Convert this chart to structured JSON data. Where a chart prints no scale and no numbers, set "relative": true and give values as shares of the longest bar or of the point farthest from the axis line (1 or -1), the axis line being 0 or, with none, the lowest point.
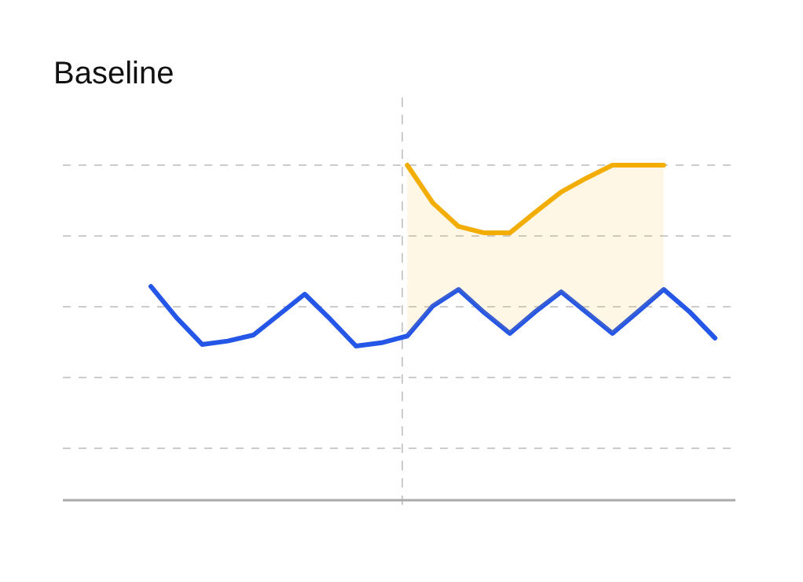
{
  "chart_data": {
    "type": "line",
    "title": "Baseline",
    "relative": true,
    "grid": "y",
    "line_style": "solid",
    "marker": "none",
    "categories": [
      null,
      null,
      null,
      null,
      null,
      null,
      null,
      null,
      null,
      null,
      null,
      null,
      null,
      null,
      null,
      null,
      null,
      null,
      null,
      null,
      null,
      null,
      null
    ],
    "series": [
      {
        "color": "#2456e8",
        "values": [
          0.638,
          0.545,
          0.465,
          0.475,
          0.493,
          0.554,
          0.615,
          0.54,
          0.46,
          0.47,
          0.49,
          0.58,
          0.629,
          0.56,
          0.498,
          0.563,
          0.622,
          0.56,
          0.498,
          0.563,
          0.629,
          0.563,
          0.484
        ]
      },
      {
        "color": "#f2ad00",
        "values": [
          null,
          null,
          null,
          null,
          null,
          null,
          null,
          null,
          null,
          null,
          1,
          0.887,
          0.817,
          0.798,
          0.798,
          0.86,
          0.92,
          0.962,
          1,
          1,
          1,
          null,
          null
        ],
        "lower": [
          null,
          null,
          null,
          null,
          null,
          null,
          null,
          null,
          null,
          null,
          0.49,
          0.58,
          0.629,
          0.56,
          0.498,
          0.563,
          0.622,
          0.56,
          0.498,
          0.563,
          0.629,
          null,
          null
        ],
        "upper": [
          null,
          null,
          null,
          null,
          null,
          null,
          null,
          null,
          null,
          null,
          1,
          0.887,
          0.817,
          0.798,
          0.798,
          0.86,
          0.92,
          0.962,
          1,
          1,
          1,
          null,
          null
        ]
      }
    ]
  }
}
